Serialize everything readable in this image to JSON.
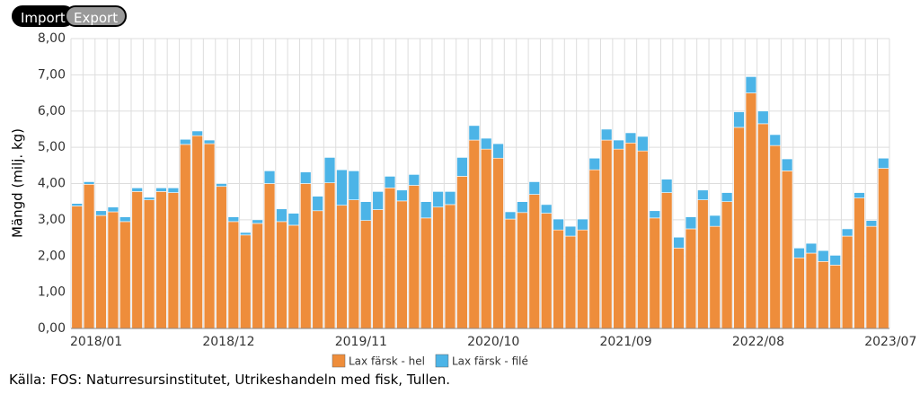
{
  "toolbar": {
    "import": "Import",
    "export": "Export"
  },
  "chart_data": {
    "type": "stacked_bar",
    "y_label": "Mängd (milj. kg)",
    "source": "Källa: FOS: Naturresursinstitutet, Utrikeshandeln med fisk, Tullen.",
    "categories": [
      "2018/01",
      null,
      null,
      null,
      null,
      null,
      null,
      null,
      null,
      null,
      null,
      "2018/12",
      null,
      null,
      null,
      null,
      null,
      null,
      null,
      null,
      null,
      null,
      "2019/11",
      null,
      null,
      null,
      null,
      null,
      null,
      null,
      null,
      null,
      null,
      "2020/10",
      null,
      null,
      null,
      null,
      null,
      null,
      null,
      null,
      null,
      null,
      "2021/09",
      null,
      null,
      null,
      null,
      null,
      null,
      null,
      null,
      null,
      null,
      "2022/08",
      null,
      null,
      null,
      null,
      null,
      null,
      null,
      null,
      null,
      null,
      "2023/07",
      null
    ],
    "series": [
      {
        "name": "Lax färsk - hel",
        "color": "#ee8d3b",
        "values": [
          3.38,
          3.98,
          3.12,
          3.22,
          2.95,
          3.78,
          3.55,
          3.78,
          3.75,
          5.08,
          5.32,
          5.1,
          3.92,
          2.95,
          2.58,
          2.9,
          4.0,
          2.95,
          2.85,
          4.0,
          3.25,
          4.02,
          3.4,
          3.55,
          2.98,
          3.28,
          3.88,
          3.52,
          3.95,
          3.05,
          3.35,
          3.42,
          4.2,
          5.2,
          4.95,
          4.7,
          3.02,
          3.2,
          3.7,
          3.18,
          2.72,
          2.55,
          2.72,
          4.38,
          5.2,
          4.95,
          5.12,
          4.9,
          3.05,
          3.75,
          2.22,
          2.75,
          3.55,
          2.82,
          3.5,
          5.55,
          6.5,
          5.65,
          5.05,
          4.35,
          1.95,
          2.08,
          1.85,
          1.75,
          2.55,
          3.6,
          2.82,
          4.42
        ]
      },
      {
        "name": "Lax färsk - filé",
        "color": "#4cb4e7",
        "values": [
          0.07,
          0.07,
          0.13,
          0.13,
          0.13,
          0.1,
          0.07,
          0.1,
          0.13,
          0.14,
          0.13,
          0.1,
          0.08,
          0.13,
          0.07,
          0.1,
          0.35,
          0.35,
          0.33,
          0.32,
          0.4,
          0.7,
          0.98,
          0.8,
          0.52,
          0.5,
          0.32,
          0.3,
          0.3,
          0.45,
          0.43,
          0.36,
          0.52,
          0.4,
          0.3,
          0.4,
          0.2,
          0.3,
          0.35,
          0.24,
          0.3,
          0.27,
          0.3,
          0.32,
          0.3,
          0.25,
          0.28,
          0.4,
          0.2,
          0.37,
          0.3,
          0.33,
          0.27,
          0.3,
          0.25,
          0.43,
          0.45,
          0.35,
          0.3,
          0.33,
          0.27,
          0.27,
          0.3,
          0.27,
          0.2,
          0.15,
          0.16,
          0.28
        ]
      }
    ],
    "ylim": [
      0,
      8
    ],
    "yticks": [
      {
        "value": 0,
        "label": "0,00"
      },
      {
        "value": 1,
        "label": "1,00"
      },
      {
        "value": 2,
        "label": "2,00"
      },
      {
        "value": 3,
        "label": "3,00"
      },
      {
        "value": 4,
        "label": "4,00"
      },
      {
        "value": 5,
        "label": "5,00"
      },
      {
        "value": 6,
        "label": "6,00"
      },
      {
        "value": 7,
        "label": "7,00"
      },
      {
        "value": 8,
        "label": "8,00"
      }
    ],
    "grid": true,
    "legend": "bottom"
  }
}
